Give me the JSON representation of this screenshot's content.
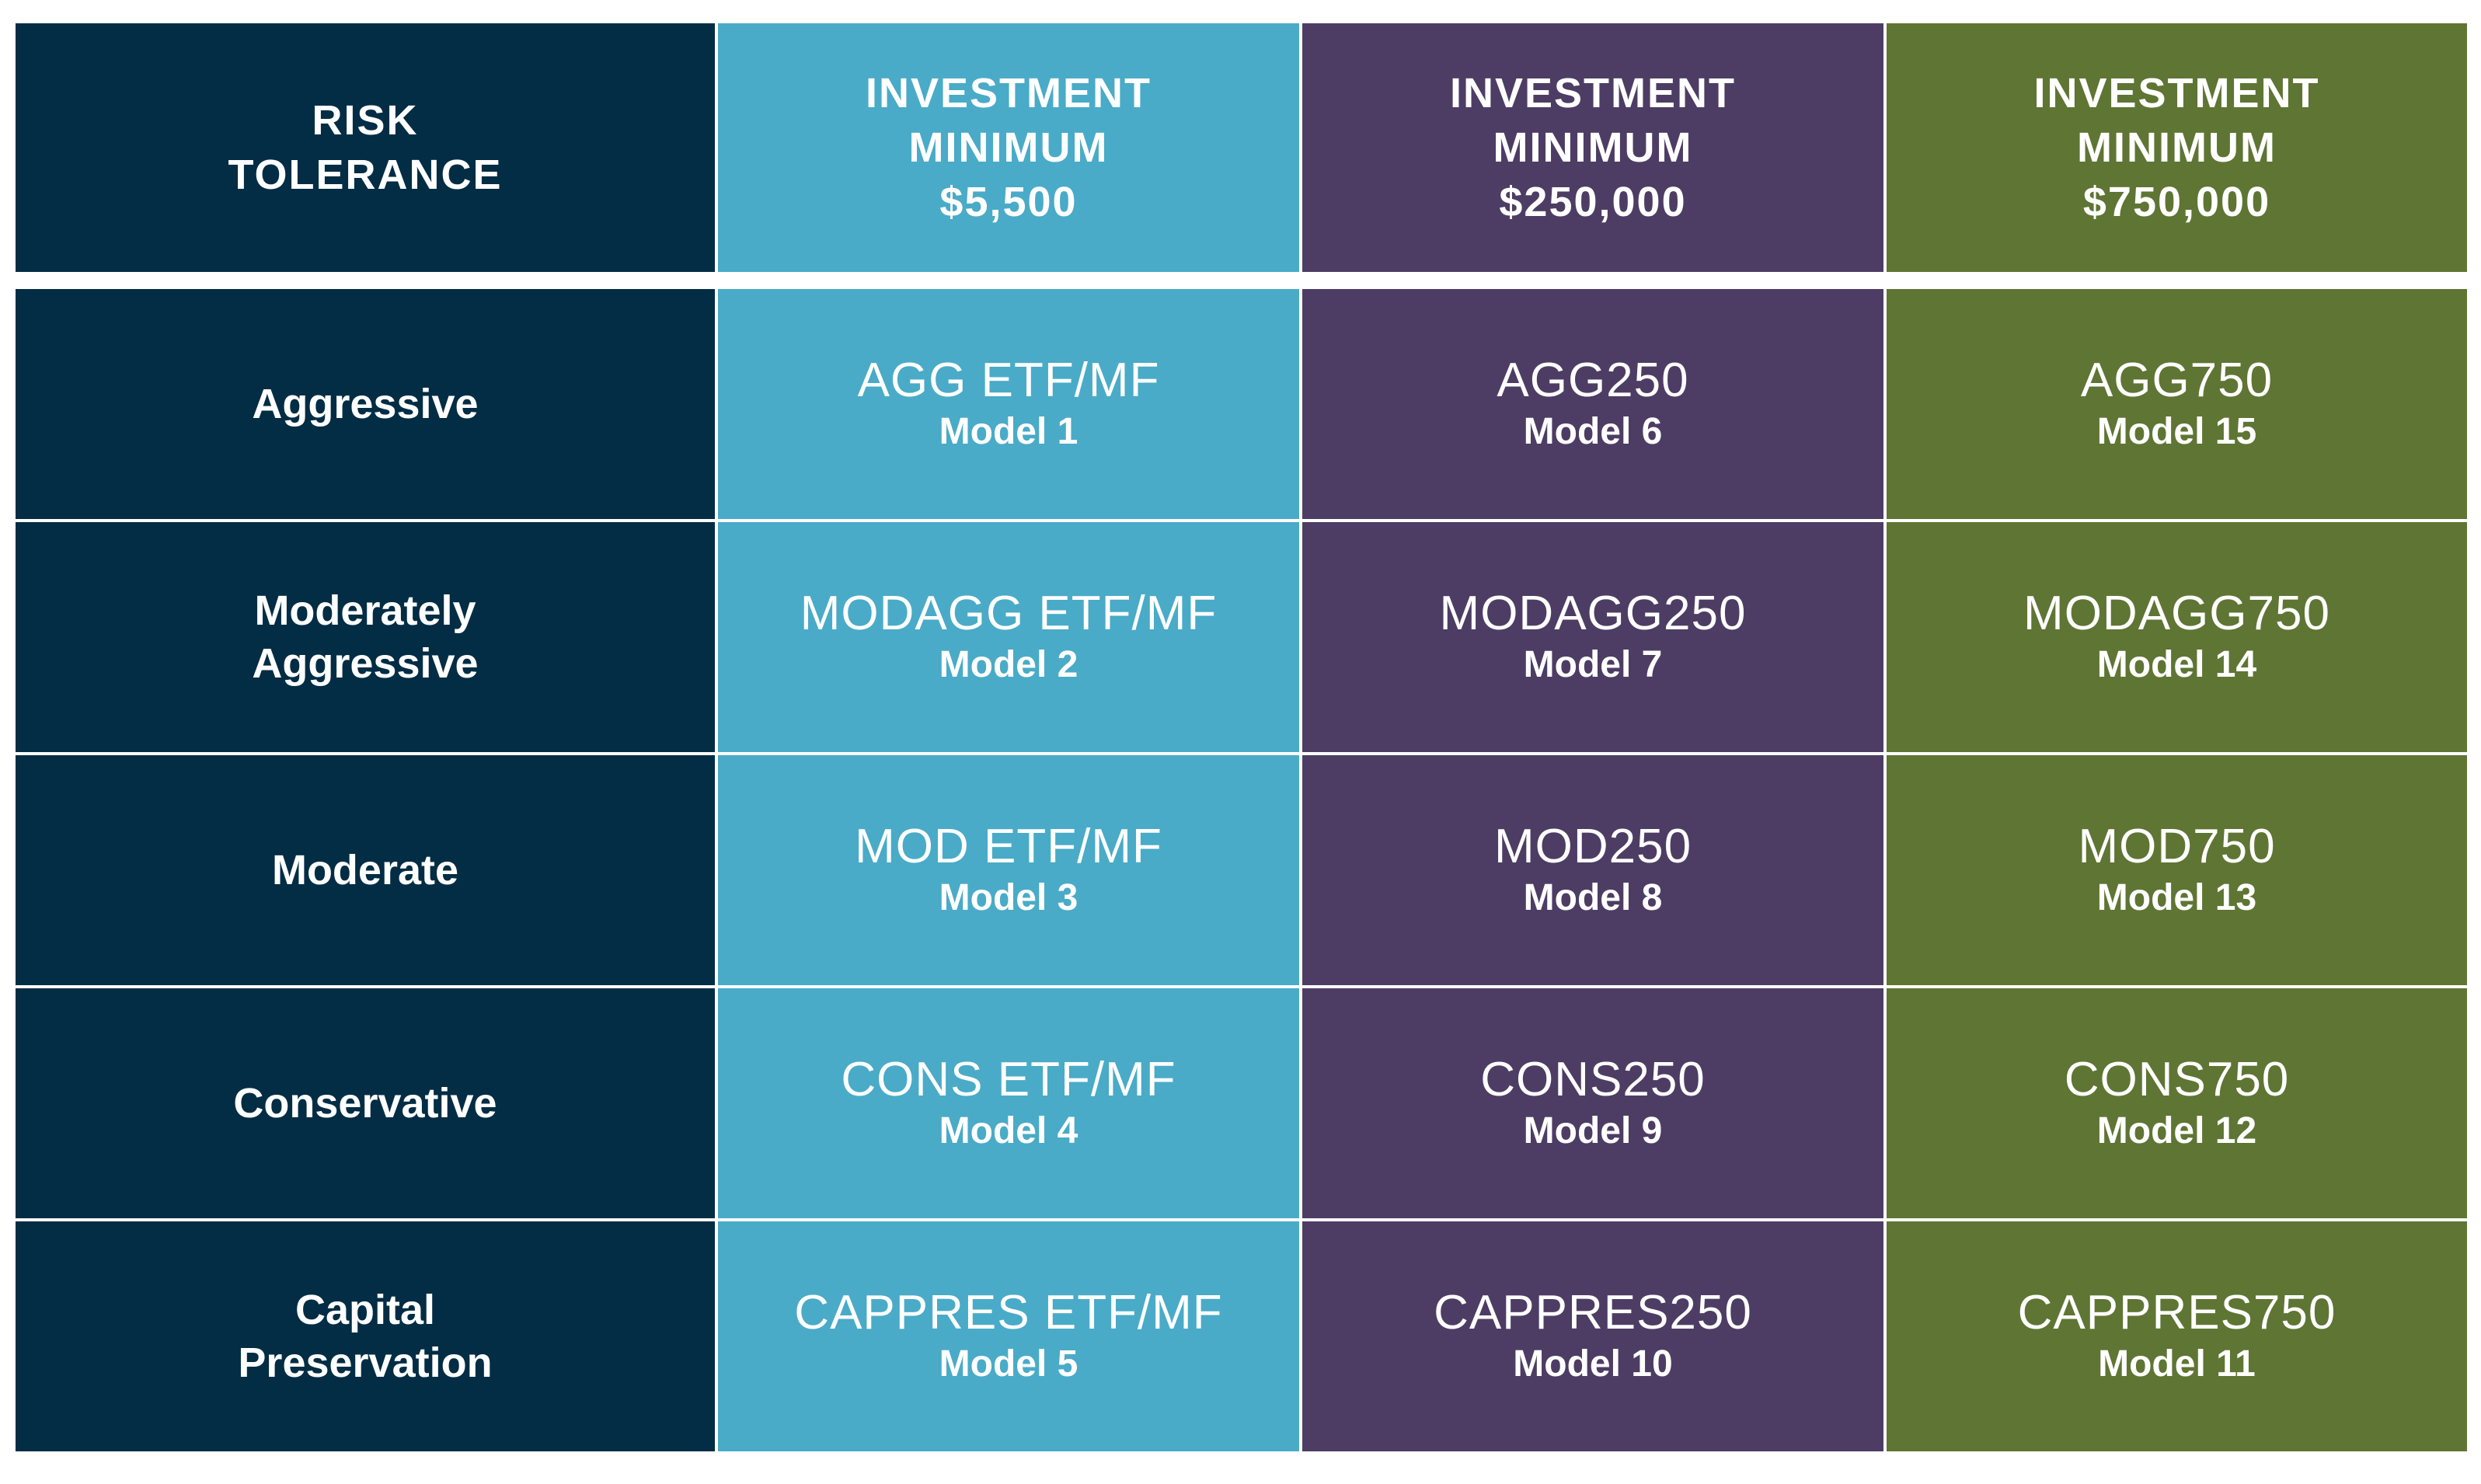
{
  "colors": {
    "risk_column": "#022d44",
    "tier_1": "#49abc7",
    "tier_2": "#4d3d64",
    "tier_3": "#5f7534",
    "text": "#ffffff"
  },
  "header": {
    "risk_label": "RISK\nTOLERANCE",
    "tiers": [
      {
        "label": "INVESTMENT\nMINIMUM\n$5,500"
      },
      {
        "label": "INVESTMENT\nMINIMUM\n$250,000"
      },
      {
        "label": "INVESTMENT\nMINIMUM\n$750,000"
      }
    ]
  },
  "rows": [
    {
      "risk": "Aggressive",
      "cells": [
        {
          "code": "AGG ETF/MF",
          "model": "Model 1"
        },
        {
          "code": "AGG250",
          "model": "Model 6"
        },
        {
          "code": "AGG750",
          "model": "Model 15"
        }
      ]
    },
    {
      "risk": "Moderately\nAggressive",
      "cells": [
        {
          "code": "MODAGG ETF/MF",
          "model": "Model 2"
        },
        {
          "code": "MODAGG250",
          "model": "Model 7"
        },
        {
          "code": "MODAGG750",
          "model": "Model 14"
        }
      ]
    },
    {
      "risk": "Moderate",
      "cells": [
        {
          "code": "MOD ETF/MF",
          "model": "Model 3"
        },
        {
          "code": "MOD250",
          "model": "Model 8"
        },
        {
          "code": "MOD750",
          "model": "Model 13"
        }
      ]
    },
    {
      "risk": "Conservative",
      "cells": [
        {
          "code": "CONS ETF/MF",
          "model": "Model 4"
        },
        {
          "code": "CONS250",
          "model": "Model 9"
        },
        {
          "code": "CONS750",
          "model": "Model 12"
        }
      ]
    },
    {
      "risk": "Capital\nPreservation",
      "cells": [
        {
          "code": "CAPPRES ETF/MF",
          "model": "Model 5"
        },
        {
          "code": "CAPPRES250",
          "model": "Model 10"
        },
        {
          "code": "CAPPRES750",
          "model": "Model 11"
        }
      ]
    }
  ]
}
